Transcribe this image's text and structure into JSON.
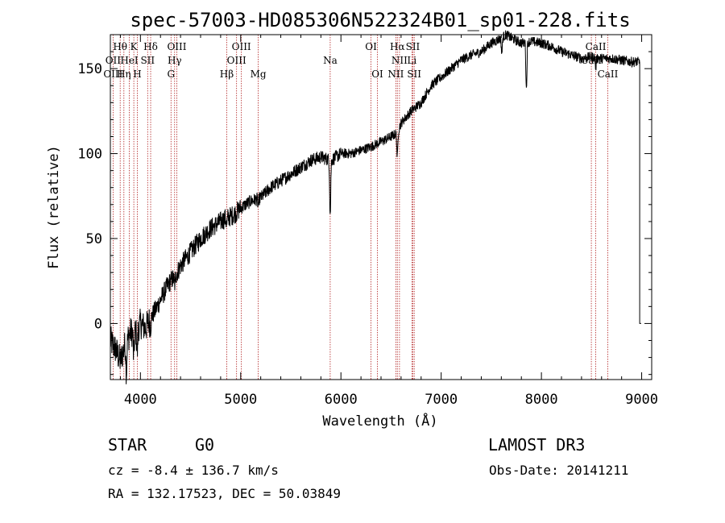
{
  "chart_data": {
    "type": "line",
    "title": "spec-57003-HD085306N522324B01_sp01-228.fits",
    "xlabel": "Wavelength (Å)",
    "ylabel": "Flux (relative)",
    "xlim": [
      3700,
      9100
    ],
    "ylim": [
      -33,
      170
    ],
    "xticks": [
      4000,
      5000,
      6000,
      7000,
      8000,
      9000
    ],
    "yticks": [
      0,
      50,
      100,
      150
    ],
    "grid": false,
    "series": [
      {
        "name": "spectrum",
        "anchors": [
          [
            3700,
            -10
          ],
          [
            3750,
            -15
          ],
          [
            3800,
            -22
          ],
          [
            3850,
            -12
          ],
          [
            3900,
            -5
          ],
          [
            3950,
            -5
          ],
          [
            4000,
            0
          ],
          [
            4050,
            -3
          ],
          [
            4100,
            3
          ],
          [
            4150,
            8
          ],
          [
            4200,
            14
          ],
          [
            4250,
            20
          ],
          [
            4300,
            25
          ],
          [
            4350,
            28
          ],
          [
            4400,
            34
          ],
          [
            4450,
            38
          ],
          [
            4500,
            42
          ],
          [
            4550,
            46
          ],
          [
            4600,
            50
          ],
          [
            4650,
            53
          ],
          [
            4700,
            56
          ],
          [
            4750,
            58
          ],
          [
            4800,
            60
          ],
          [
            4850,
            62
          ],
          [
            4900,
            63
          ],
          [
            4950,
            65
          ],
          [
            5000,
            68
          ],
          [
            5050,
            70
          ],
          [
            5100,
            72
          ],
          [
            5150,
            73
          ],
          [
            5200,
            74
          ],
          [
            5250,
            77
          ],
          [
            5300,
            80
          ],
          [
            5400,
            84
          ],
          [
            5500,
            88
          ],
          [
            5600,
            92
          ],
          [
            5700,
            96
          ],
          [
            5800,
            98
          ],
          [
            5850,
            97
          ],
          [
            5900,
            96
          ],
          [
            5950,
            98
          ],
          [
            6000,
            100
          ],
          [
            6100,
            100
          ],
          [
            6200,
            102
          ],
          [
            6300,
            104
          ],
          [
            6400,
            107
          ],
          [
            6500,
            110
          ],
          [
            6560,
            112
          ],
          [
            6600,
            118
          ],
          [
            6700,
            125
          ],
          [
            6800,
            130
          ],
          [
            6900,
            140
          ],
          [
            7000,
            145
          ],
          [
            7100,
            150
          ],
          [
            7200,
            155
          ],
          [
            7300,
            158
          ],
          [
            7400,
            160
          ],
          [
            7500,
            165
          ],
          [
            7600,
            168
          ],
          [
            7650,
            170
          ],
          [
            7700,
            168
          ],
          [
            7800,
            165
          ],
          [
            7900,
            166
          ],
          [
            8000,
            165
          ],
          [
            8100,
            163
          ],
          [
            8200,
            160
          ],
          [
            8300,
            158
          ],
          [
            8400,
            156
          ],
          [
            8500,
            157
          ],
          [
            8600,
            156
          ],
          [
            8700,
            156
          ],
          [
            8800,
            155
          ],
          [
            8900,
            154
          ],
          [
            8980,
            154
          ]
        ],
        "absorption_features": [
          {
            "wavelength": 3860,
            "depth": 18
          },
          {
            "wavelength": 3933,
            "depth": 15
          },
          {
            "wavelength": 3968,
            "depth": 14
          },
          {
            "wavelength": 4101,
            "depth": 6
          },
          {
            "wavelength": 4340,
            "depth": 5
          },
          {
            "wavelength": 4861,
            "depth": 4
          },
          {
            "wavelength": 5175,
            "depth": 4
          },
          {
            "wavelength": 5893,
            "depth": 32
          },
          {
            "wavelength": 6563,
            "depth": 15
          },
          {
            "wavelength": 7605,
            "depth": 9
          },
          {
            "wavelength": 7850,
            "depth": 28
          },
          {
            "wavelength": 8542,
            "depth": 6
          }
        ]
      }
    ],
    "spectral_lines": [
      {
        "label": "Hθ",
        "wavelength": 3798,
        "row": 1
      },
      {
        "label": "OII",
        "wavelength": 3727,
        "row": 2
      },
      {
        "label": "OIII",
        "wavelength": 3727,
        "row": 3
      },
      {
        "label": "K",
        "wavelength": 3934,
        "row": 1
      },
      {
        "label": "HeI",
        "wavelength": 3889,
        "row": 2
      },
      {
        "label": "Hη",
        "wavelength": 3835,
        "row": 3
      },
      {
        "label": "Hδ",
        "wavelength": 4102,
        "row": 1
      },
      {
        "label": "SII",
        "wavelength": 4072,
        "row": 2
      },
      {
        "label": "H",
        "wavelength": 3969,
        "row": 3
      },
      {
        "label": "OIII",
        "wavelength": 4363,
        "row": 1
      },
      {
        "label": "Hγ",
        "wavelength": 4341,
        "row": 2
      },
      {
        "label": "G",
        "wavelength": 4305,
        "row": 3
      },
      {
        "label": "OIII",
        "wavelength": 5007,
        "row": 1
      },
      {
        "label": "OIII",
        "wavelength": 4959,
        "row": 2
      },
      {
        "label": "Hβ",
        "wavelength": 4861,
        "row": 3
      },
      {
        "label": "Mg",
        "wavelength": 5175,
        "row": 3
      },
      {
        "label": "Na",
        "wavelength": 5893,
        "row": 2
      },
      {
        "label": "OI",
        "wavelength": 6300,
        "row": 1
      },
      {
        "label": "OI",
        "wavelength": 6364,
        "row": 3
      },
      {
        "label": "Hα",
        "wavelength": 6563,
        "row": 1
      },
      {
        "label": "SII",
        "wavelength": 6717,
        "row": 1
      },
      {
        "label": "NII",
        "wavelength": 6584,
        "row": 2
      },
      {
        "label": "Li",
        "wavelength": 6708,
        "row": 2
      },
      {
        "label": "NII",
        "wavelength": 6548,
        "row": 3
      },
      {
        "label": "SII",
        "wavelength": 6731,
        "row": 3
      },
      {
        "label": "CaII",
        "wavelength": 8542,
        "row": 1
      },
      {
        "label": "CaII",
        "wavelength": 8498,
        "row": 2
      },
      {
        "label": "CaII",
        "wavelength": 8662,
        "row": 3
      }
    ],
    "annotations": {
      "class": "STAR",
      "subclass": "G0",
      "survey": "LAMOST DR3",
      "redshift": "cz = -8.4 ± 136.7 km/s",
      "obs_date": "Obs-Date: 20141211",
      "coords": "RA = 132.17523, DEC =  50.03849"
    }
  },
  "colors": {
    "spectrum": "#000000",
    "line_markers": "#b22222",
    "axes": "#000000",
    "background": "#ffffff"
  }
}
